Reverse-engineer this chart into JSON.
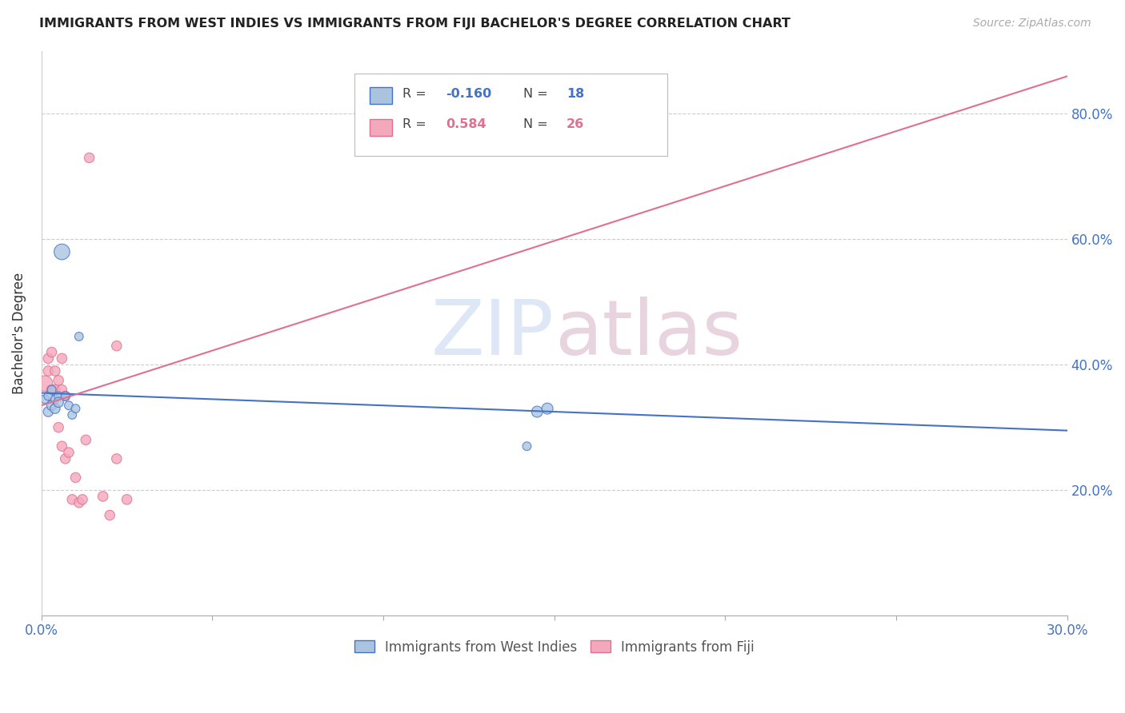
{
  "title": "IMMIGRANTS FROM WEST INDIES VS IMMIGRANTS FROM FIJI BACHELOR'S DEGREE CORRELATION CHART",
  "source": "Source: ZipAtlas.com",
  "ylabel": "Bachelor's Degree",
  "xlim": [
    0.0,
    0.3
  ],
  "ylim": [
    0.0,
    0.9
  ],
  "yticks": [
    0.2,
    0.4,
    0.6,
    0.8
  ],
  "ytick_labels": [
    "20.0%",
    "40.0%",
    "60.0%",
    "80.0%"
  ],
  "xticks": [
    0.0,
    0.05,
    0.1,
    0.15,
    0.2,
    0.25,
    0.3
  ],
  "xtick_labels": [
    "0.0%",
    "",
    "",
    "",
    "",
    "",
    "30.0%"
  ],
  "west_indies_R": -0.16,
  "west_indies_N": 18,
  "fiji_R": 0.584,
  "fiji_N": 26,
  "west_indies_color": "#aac4e0",
  "fiji_color": "#f4a8bc",
  "west_indies_line_color": "#4472c4",
  "fiji_line_color": "#e07090",
  "legend_label_1": "Immigrants from West Indies",
  "legend_label_2": "Immigrants from Fiji",
  "west_indies_x": [
    0.001,
    0.002,
    0.002,
    0.003,
    0.003,
    0.004,
    0.004,
    0.005,
    0.005,
    0.006,
    0.007,
    0.008,
    0.009,
    0.01,
    0.011,
    0.142,
    0.145,
    0.148
  ],
  "west_indies_y": [
    0.345,
    0.35,
    0.325,
    0.36,
    0.335,
    0.345,
    0.33,
    0.35,
    0.34,
    0.58,
    0.35,
    0.335,
    0.32,
    0.33,
    0.445,
    0.27,
    0.325,
    0.33
  ],
  "west_indies_sizes": [
    60,
    60,
    80,
    60,
    80,
    60,
    80,
    60,
    80,
    200,
    60,
    60,
    60,
    60,
    60,
    60,
    100,
    100
  ],
  "fiji_x": [
    0.001,
    0.002,
    0.002,
    0.003,
    0.003,
    0.004,
    0.004,
    0.005,
    0.005,
    0.006,
    0.006,
    0.006,
    0.007,
    0.007,
    0.008,
    0.009,
    0.01,
    0.011,
    0.012,
    0.013,
    0.014,
    0.018,
    0.02,
    0.022,
    0.022,
    0.025
  ],
  "fiji_y": [
    0.37,
    0.41,
    0.39,
    0.36,
    0.42,
    0.39,
    0.36,
    0.375,
    0.3,
    0.27,
    0.41,
    0.36,
    0.35,
    0.25,
    0.26,
    0.185,
    0.22,
    0.18,
    0.185,
    0.28,
    0.73,
    0.19,
    0.16,
    0.25,
    0.43,
    0.185
  ],
  "fiji_sizes": [
    200,
    80,
    80,
    80,
    80,
    80,
    80,
    80,
    80,
    80,
    80,
    80,
    80,
    80,
    80,
    80,
    80,
    80,
    80,
    80,
    80,
    80,
    80,
    80,
    80,
    80
  ],
  "wi_line_x": [
    0.0,
    0.3
  ],
  "wi_line_y": [
    0.355,
    0.295
  ],
  "fiji_line_x": [
    0.0,
    0.3
  ],
  "fiji_line_y": [
    0.335,
    0.86
  ]
}
